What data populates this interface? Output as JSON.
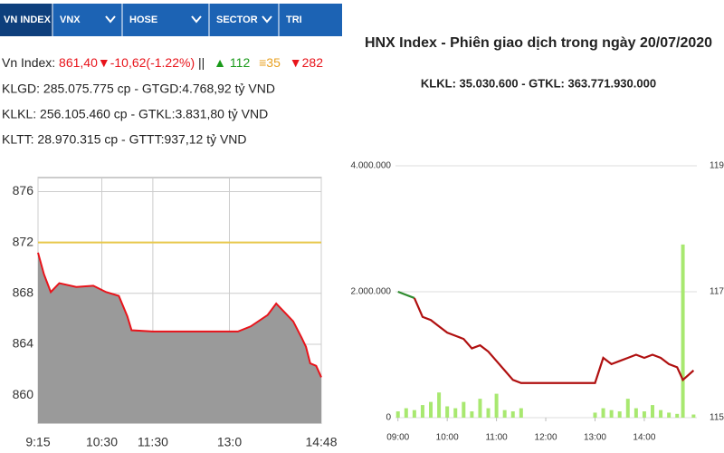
{
  "tabs": [
    "VN INDEX",
    "VNX",
    "HOSE",
    "SECTOR",
    "TRI"
  ],
  "info": {
    "index_label": "Vn Index:",
    "index_change": "861,40▼-10,62(-1.22%)",
    "separator": "||",
    "advances": "▲ 112",
    "unchanged": "≡35",
    "declines": "▼282",
    "lines": [
      "KLGD: 285.075.775 cp - GTGD:4.768,92 tỷ VND",
      "KLKL: 256.105.460 cp - GTKL:3.831,80 tỷ VND",
      "KLTT: 28.970.315 cp - GTTT:937,12 tỷ VND"
    ]
  },
  "chart_data": [
    {
      "type": "area",
      "x": [
        555,
        562,
        570,
        580,
        600,
        620,
        635,
        650,
        660,
        665,
        690,
        780,
        790,
        805,
        825,
        835,
        845,
        855,
        865,
        870,
        875,
        882,
        888
      ],
      "series": [
        {
          "color": "#e8141b",
          "fill": "#9a9a9a",
          "values": [
            871.2,
            869.5,
            868.1,
            868.8,
            868.5,
            868.6,
            868.1,
            867.8,
            866.2,
            865.1,
            865.0,
            865.0,
            865.0,
            865.4,
            866.3,
            867.2,
            866.5,
            865.8,
            864.5,
            863.8,
            862.5,
            862.3,
            861.4
          ]
        }
      ],
      "reference": 872,
      "reference_color": "#e8c84a",
      "xlim": [
        555,
        888
      ],
      "xticks": [
        {
          "value": 555,
          "label": "9:15"
        },
        {
          "value": 630,
          "label": "10:30"
        },
        {
          "value": 690,
          "label": "11:30"
        },
        {
          "value": 780,
          "label": "13:0"
        },
        {
          "value": 888,
          "label": "14:48"
        }
      ],
      "ylim": [
        857.8,
        877.1
      ],
      "yticks": [
        860,
        864,
        868,
        872,
        876
      ],
      "grid": true,
      "x_grid": true
    },
    {
      "type": "line",
      "title": "HNX Index - Phiên giao dịch trong ngày 20/07/2020",
      "subtitle": "KLKL: 35.030.600 - GTKL: 363.771.930.000",
      "x": [
        540,
        550,
        560,
        570,
        580,
        590,
        600,
        610,
        620,
        630,
        640,
        650,
        660,
        670,
        680,
        690,
        700,
        720,
        740,
        760,
        780,
        790,
        800,
        810,
        820,
        830,
        840,
        850,
        860,
        870,
        880,
        887,
        900
      ],
      "series": [
        {
          "type": "bar",
          "color": "#a8e870",
          "values": [
            100000,
            150000,
            120000,
            200000,
            250000,
            400000,
            180000,
            150000,
            250000,
            100000,
            300000,
            150000,
            380000,
            120000,
            100000,
            150000,
            0,
            0,
            0,
            0,
            80000,
            150000,
            120000,
            100000,
            300000,
            150000,
            100000,
            200000,
            120000,
            80000,
            60000,
            2750000,
            50000
          ]
        },
        {
          "type": "line",
          "axis": "y2",
          "color": "#2e8b2e",
          "values": [
            117.0,
            116.95,
            116.9,
            null,
            null,
            null,
            null,
            null,
            null,
            null,
            null,
            null,
            null,
            null,
            null,
            null,
            null,
            null,
            null,
            null,
            null,
            null,
            null,
            null,
            null,
            null,
            null,
            null,
            null,
            null,
            null,
            null,
            null
          ]
        },
        {
          "type": "line",
          "axis": "y2",
          "color": "#b01010",
          "values": [
            null,
            null,
            116.9,
            116.6,
            116.55,
            116.45,
            116.35,
            116.3,
            116.25,
            116.1,
            116.15,
            116.05,
            115.9,
            115.75,
            115.6,
            115.55,
            115.55,
            115.55,
            115.55,
            115.55,
            115.55,
            115.95,
            115.85,
            115.9,
            115.95,
            116.0,
            115.95,
            116.0,
            115.95,
            115.85,
            115.8,
            115.6,
            115.75
          ]
        }
      ],
      "xlim": [
        537,
        904
      ],
      "xticks": [
        {
          "value": 540,
          "label": "09:00"
        },
        {
          "value": 600,
          "label": "10:00"
        },
        {
          "value": 660,
          "label": "11:00"
        },
        {
          "value": 720,
          "label": "12:00"
        },
        {
          "value": 780,
          "label": "13:00"
        },
        {
          "value": 840,
          "label": "14:00"
        }
      ],
      "ylim": [
        0,
        4000000
      ],
      "yticks": [
        0,
        {
          "value": 2000000,
          "label": "2.000.000"
        },
        {
          "value": 4000000,
          "label": "4.000.000"
        }
      ],
      "y2lim": [
        115,
        119
      ],
      "y2ticks": [
        115,
        117,
        119
      ],
      "grid": true,
      "x_grid": false
    }
  ]
}
